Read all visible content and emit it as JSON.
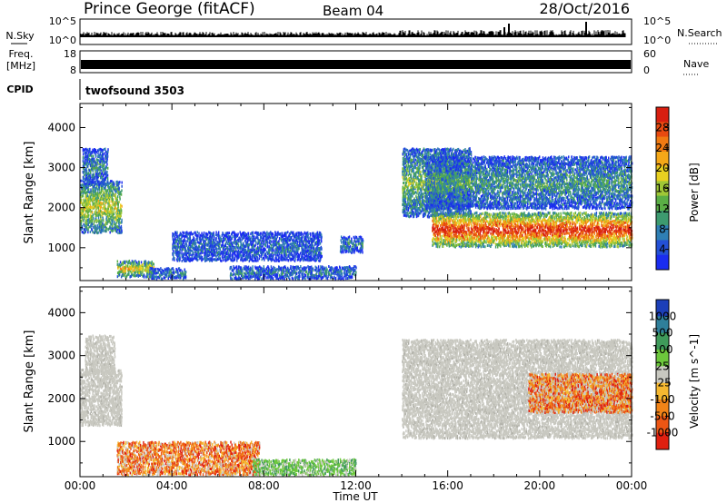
{
  "header": {
    "title": "Prince George (fitACF)",
    "beam": "Beam 04",
    "date": "28/Oct/2016"
  },
  "strips": {
    "nsky_label": "N.Sky",
    "nsky_ticks": [
      "10^5",
      "10^0"
    ],
    "nsearch_label": "N.Search",
    "nsearch_ticks": [
      "10^5",
      "10^0"
    ],
    "freq_label_line1": "Freq.",
    "freq_label_line2": "[MHz]",
    "freq_ticks": [
      "18",
      "8"
    ],
    "nave_label": "Nave",
    "nave_ticks": [
      "60",
      "0"
    ],
    "cpid_label": "CPID",
    "cpid_value": "twofsound 3503"
  },
  "chart_data": [
    {
      "type": "heatmap",
      "name": "power-panel",
      "ylabel": "Slant Range [km]",
      "xlabel": "",
      "x_ticks": [
        "00:00",
        "04:00",
        "08:00",
        "12:00",
        "16:00",
        "20:00",
        "00:00"
      ],
      "x_tick_hours": [
        0,
        4,
        8,
        12,
        16,
        20,
        24
      ],
      "xlim": [
        0,
        24
      ],
      "y_ticks": [
        1000,
        2000,
        3000,
        4000
      ],
      "ylim": [
        180,
        4600
      ],
      "colorbar": {
        "label": "Power [dB]",
        "ticks": [
          "4",
          "8",
          "12",
          "16",
          "20",
          "24",
          "28"
        ],
        "tick_values": [
          4,
          8,
          12,
          16,
          20,
          24,
          28
        ],
        "range": [
          0,
          32
        ],
        "colors": [
          "#1a2cf0",
          "#2350d6",
          "#2f7fb4",
          "#3d9a6f",
          "#5aae45",
          "#9fc736",
          "#e8d020",
          "#f5a818",
          "#f07a12",
          "#e84a10",
          "#d81f10"
        ]
      },
      "regions": [
        {
          "t0": 0.0,
          "t1": 1.8,
          "r0": 1400,
          "r1": 2700,
          "level": 0.45
        },
        {
          "t0": 0.1,
          "t1": 1.2,
          "r0": 2600,
          "r1": 3500,
          "level": 0.2
        },
        {
          "t0": 1.6,
          "t1": 3.2,
          "r0": 300,
          "r1": 700,
          "level": 0.55
        },
        {
          "t0": 3.0,
          "t1": 4.6,
          "r0": 250,
          "r1": 500,
          "level": 0.2
        },
        {
          "t0": 4.0,
          "t1": 10.5,
          "r0": 700,
          "r1": 1400,
          "level": 0.15
        },
        {
          "t0": 6.5,
          "t1": 12.0,
          "r0": 250,
          "r1": 550,
          "level": 0.2
        },
        {
          "t0": 11.3,
          "t1": 12.3,
          "r0": 900,
          "r1": 1300,
          "level": 0.2
        },
        {
          "t0": 14.0,
          "t1": 17.0,
          "r0": 1800,
          "r1": 3500,
          "level": 0.35
        },
        {
          "t0": 15.0,
          "t1": 24.0,
          "r0": 2000,
          "r1": 3300,
          "level": 0.25
        },
        {
          "t0": 15.3,
          "t1": 24.0,
          "r0": 1050,
          "r1": 1900,
          "level": 0.8
        }
      ]
    },
    {
      "type": "heatmap",
      "name": "velocity-panel",
      "ylabel": "Slant Range [km]",
      "xlabel": "Time UT",
      "x_ticks": [
        "00:00",
        "04:00",
        "08:00",
        "12:00",
        "16:00",
        "20:00",
        "00:00"
      ],
      "x_tick_hours": [
        0,
        4,
        8,
        12,
        16,
        20,
        24
      ],
      "xlim": [
        0,
        24
      ],
      "y_ticks": [
        1000,
        2000,
        3000,
        4000
      ],
      "ylim": [
        180,
        4600
      ],
      "colorbar": {
        "label": "Velocity [m s^-1]",
        "ticks": [
          "1000",
          "500",
          "100",
          "25",
          "-25",
          "-100",
          "-500",
          "-1000"
        ],
        "colors": [
          "#1c3fb8",
          "#2f7f9a",
          "#3f9a5a",
          "#6dc83c",
          "#c8c8c0",
          "#f5b830",
          "#f28418",
          "#ec5614",
          "#e02010"
        ]
      },
      "regions": [
        {
          "t0": 0.0,
          "t1": 1.8,
          "r0": 1400,
          "r1": 2700,
          "kind": "grey"
        },
        {
          "t0": 0.2,
          "t1": 1.5,
          "r0": 2600,
          "r1": 3500,
          "kind": "grey"
        },
        {
          "t0": 1.6,
          "t1": 7.8,
          "r0": 250,
          "r1": 1000,
          "kind": "neg"
        },
        {
          "t0": 7.5,
          "t1": 12.0,
          "r0": 250,
          "r1": 600,
          "kind": "pos"
        },
        {
          "t0": 14.0,
          "t1": 24.0,
          "r0": 1100,
          "r1": 3400,
          "kind": "grey"
        },
        {
          "t0": 19.5,
          "t1": 24.0,
          "r0": 1700,
          "r1": 2600,
          "kind": "neg"
        }
      ]
    }
  ]
}
